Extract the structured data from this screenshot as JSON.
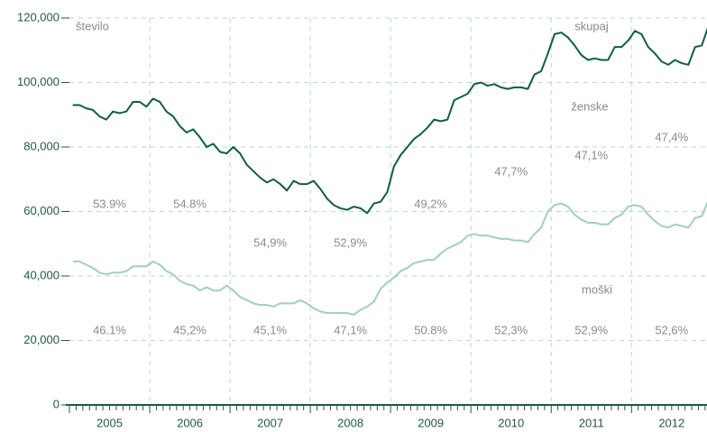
{
  "chart_data": {
    "type": "line",
    "annotations": [
      "število",
      "skupaj",
      "ženske",
      "moški"
    ],
    "upper_labels": [
      "53.9%",
      "54.8%",
      "54,9%",
      "52,9%",
      "49,2%",
      "47,7%",
      "47,1%",
      "47,4%"
    ],
    "lower_labels": [
      "46.1%",
      "45,2%",
      "45,1%",
      "47,1%",
      "50.8%",
      "52,3%",
      "52,9%",
      "52,6%"
    ],
    "categories": [
      "2005",
      null,
      null,
      null,
      null,
      null,
      null,
      null,
      null,
      null,
      null,
      null,
      "2006",
      null,
      null,
      null,
      null,
      null,
      null,
      null,
      null,
      null,
      null,
      null,
      "2007",
      null,
      null,
      null,
      null,
      null,
      null,
      null,
      null,
      null,
      null,
      null,
      "2008",
      null,
      null,
      null,
      null,
      null,
      null,
      null,
      null,
      null,
      null,
      null,
      "2009",
      null,
      null,
      null,
      null,
      null,
      null,
      null,
      null,
      null,
      null,
      null,
      "2010",
      null,
      null,
      null,
      null,
      null,
      null,
      null,
      null,
      null,
      null,
      null,
      "2011",
      null,
      null,
      null,
      null,
      null,
      null,
      null,
      null,
      null,
      null,
      null,
      "2012",
      null,
      null,
      null,
      null,
      null,
      null,
      null,
      null,
      null,
      null,
      null
    ],
    "series": [
      {
        "name": "skupaj",
        "color": "#0e5e45",
        "values": [
          93000,
          93000,
          92000,
          91500,
          89500,
          88500,
          91000,
          90500,
          91000,
          94000,
          94000,
          92500,
          95000,
          94000,
          91000,
          89500,
          86500,
          84500,
          85500,
          83000,
          80000,
          81000,
          78500,
          78000,
          80000,
          78000,
          74500,
          72500,
          70500,
          69000,
          70000,
          68500,
          66500,
          69500,
          68500,
          68500,
          69500,
          67000,
          64000,
          62000,
          61000,
          60500,
          61500,
          61000,
          59500,
          62500,
          63000,
          66000,
          74000,
          77500,
          80000,
          82500,
          84000,
          86000,
          88500,
          88000,
          88500,
          94500,
          95500,
          96500,
          99500,
          100000,
          99000,
          99500,
          98500,
          98000,
          98500,
          98500,
          98000,
          102500,
          103500,
          109000,
          115000,
          115500,
          114000,
          111500,
          108500,
          107000,
          107500,
          107000,
          107000,
          111000,
          111000,
          113000,
          116000,
          115000,
          111000,
          109000,
          106500,
          105500,
          107000,
          106000,
          105500,
          111000,
          111500,
          117500
        ]
      },
      {
        "name": "moški",
        "color": "#9fd1b9",
        "values": [
          44500,
          44500,
          43500,
          42500,
          41000,
          40500,
          41000,
          41000,
          41500,
          43000,
          43000,
          43000,
          44500,
          43500,
          41500,
          40500,
          38500,
          37500,
          37000,
          35500,
          36500,
          35500,
          35500,
          37000,
          35500,
          33500,
          32500,
          31500,
          31000,
          31000,
          30500,
          31500,
          31500,
          31500,
          32500,
          31500,
          30000,
          29000,
          28500,
          28500,
          28500,
          28500,
          28000,
          29500,
          30500,
          32000,
          36000,
          38000,
          39500,
          41500,
          42500,
          44000,
          44500,
          45000,
          45000,
          47000,
          48500,
          49500,
          50500,
          52500,
          53000,
          52500,
          52500,
          52000,
          51500,
          51500,
          51000,
          51000,
          50500,
          53000,
          55000,
          60000,
          62000,
          62500,
          61500,
          59000,
          57500,
          56500,
          56500,
          56000,
          56000,
          58000,
          59000,
          61500,
          62000,
          61500,
          59000,
          57000,
          55500,
          55000,
          56000,
          55500,
          55000,
          58000,
          58500,
          63500
        ]
      }
    ],
    "ylim": [
      0,
      120000
    ],
    "yticks": [
      0,
      {
        "value": 20000,
        "label": "20,000"
      },
      {
        "value": 40000,
        "label": "40,000"
      },
      {
        "value": 60000,
        "label": "60,000"
      },
      {
        "value": 80000,
        "label": "80,000"
      },
      {
        "value": 100000,
        "label": "100,000"
      },
      {
        "value": 120000,
        "label": "120,000"
      }
    ],
    "grid": true
  }
}
